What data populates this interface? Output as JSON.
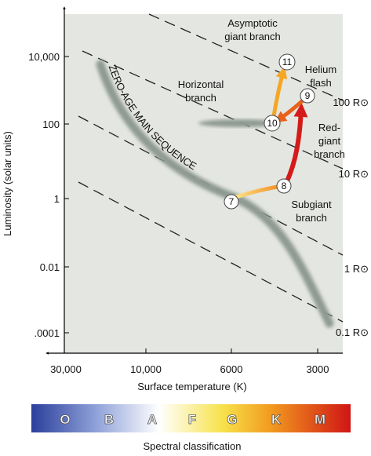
{
  "axes": {
    "y_label": "Luminosity (solar units)",
    "y_ticks": [
      "10,000",
      "100",
      "1",
      "0.01",
      ".0001"
    ],
    "x_label": "Surface temperature (K)",
    "x_ticks": [
      "30,000",
      "10,000",
      "6000",
      "3000"
    ]
  },
  "radius_lines": [
    "100 R⊙",
    "10 R⊙",
    "1 R⊙",
    "0.1 R⊙"
  ],
  "regions": {
    "main_sequence": "ZERO-AGE MAIN SEQUENCE",
    "horizontal_branch": [
      "Horizontal",
      "branch"
    ],
    "agb": [
      "Asymptotic",
      "giant branch"
    ],
    "helium_flash": [
      "Helium",
      "flash"
    ],
    "red_giant": [
      "Red-",
      "giant",
      "branch"
    ],
    "subgiant": [
      "Subgiant",
      "branch"
    ]
  },
  "stages": [
    "7",
    "8",
    "9",
    "10",
    "11"
  ],
  "spectral": {
    "classes": [
      "O",
      "B",
      "A",
      "F",
      "G",
      "K",
      "M"
    ],
    "label": "Spectral classification"
  }
}
